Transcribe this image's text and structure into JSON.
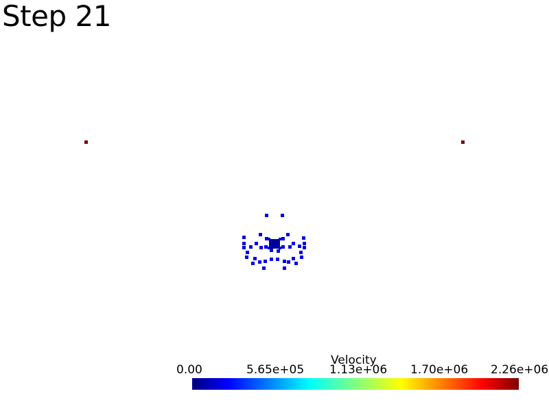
{
  "title": "Step 21",
  "scalar_bar": {
    "title": "Velocity",
    "min": 0.0,
    "max": 2260000,
    "tick_labels": [
      "0.00",
      "5.65e+05",
      "1.13e+06",
      "1.70e+06",
      "2.26e+06"
    ],
    "colormap": "jet",
    "colors": [
      "#00007f",
      "#0000ff",
      "#00ffff",
      "#ffff00",
      "#ff0000",
      "#7f0000"
    ]
  },
  "particles": {
    "high_velocity_color": "#7f0000",
    "low_velocity_color": "#0000e8",
    "core_color": "#00009a"
  }
}
